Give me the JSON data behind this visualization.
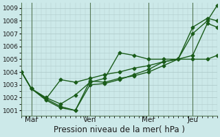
{
  "xlabel": "Pression niveau de la mer( hPa )",
  "bg_color": "#cce9e9",
  "grid_color": "#b0cccc",
  "line_color": "#1a5c1a",
  "ylim": [
    1000.6,
    1009.4
  ],
  "yticks": [
    1001,
    1002,
    1003,
    1004,
    1005,
    1006,
    1007,
    1008,
    1009
  ],
  "x_tick_labels": [
    "Mar",
    "Ven",
    "Mer",
    "Jeu"
  ],
  "x_tick_positions": [
    2,
    14,
    26,
    35
  ],
  "xlim": [
    0,
    40
  ],
  "vline_positions": [
    2,
    14,
    26,
    35
  ],
  "series": [
    {
      "x": [
        0,
        2,
        5,
        8,
        11,
        14,
        17,
        20,
        23,
        26,
        29,
        32,
        35,
        38,
        40
      ],
      "y": [
        1004.0,
        1002.7,
        1001.9,
        1001.3,
        1001.0,
        1003.3,
        1003.2,
        1003.5,
        1003.7,
        1004.0,
        1004.5,
        1005.0,
        1007.0,
        1008.0,
        1009.2
      ]
    },
    {
      "x": [
        0,
        2,
        5,
        8,
        11,
        14,
        17,
        20,
        23,
        26,
        29,
        32,
        35,
        38,
        40
      ],
      "y": [
        1004.0,
        1002.7,
        1001.8,
        1001.2,
        1001.0,
        1003.0,
        1003.1,
        1003.4,
        1003.8,
        1004.2,
        1004.8,
        1005.0,
        1007.5,
        1008.2,
        1008.0
      ]
    },
    {
      "x": [
        0,
        2,
        5,
        8,
        11,
        14,
        17,
        20,
        23,
        26,
        29,
        32,
        35,
        38,
        40
      ],
      "y": [
        1004.0,
        1002.7,
        1002.0,
        1001.5,
        1002.2,
        1003.2,
        1003.5,
        1005.5,
        1005.3,
        1005.0,
        1005.0,
        1005.0,
        1005.3,
        1007.8,
        1007.5
      ]
    },
    {
      "x": [
        0,
        2,
        5,
        8,
        11,
        14,
        17,
        20,
        23,
        26,
        29,
        32,
        35,
        38,
        40
      ],
      "y": [
        1004.0,
        1002.7,
        1001.9,
        1003.4,
        1003.2,
        1003.5,
        1003.8,
        1004.0,
        1004.3,
        1004.5,
        1004.8,
        1005.0,
        1005.0,
        1005.0,
        1005.3
      ]
    }
  ],
  "marker": "D",
  "marker_size": 2.5,
  "linewidth": 1.0
}
